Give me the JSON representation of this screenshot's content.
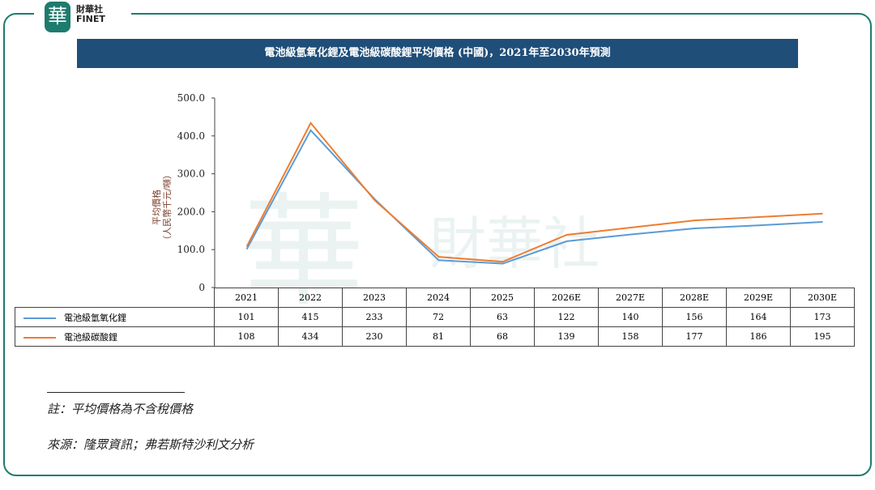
{
  "brand": {
    "logo_char": "華",
    "name_cn": "財華社",
    "name_en": "FINET"
  },
  "title": "電池級氫氧化鋰及電池級碳酸鋰平均價格 (中國)，2021年至2030年預測",
  "chart_data": {
    "type": "line",
    "title": "電池級氫氧化鋰及電池級碳酸鋰平均價格 (中國)，2021年至2030年預測",
    "ylabel": "平均價格（人民幣千元/噸）",
    "ylabel_line1": "平均價格",
    "ylabel_line2": "（人民幣千元/噸）",
    "ylim": [
      0,
      500
    ],
    "yticks": [
      "0",
      "100.0",
      "200.0",
      "300.0",
      "400.0",
      "500.0"
    ],
    "categories": [
      "2021",
      "2022",
      "2023",
      "2024",
      "2025",
      "2026E",
      "2027E",
      "2028E",
      "2029E",
      "2030E"
    ],
    "series": [
      {
        "name": "電池級氫氧化鋰",
        "color": "#5b9bd5",
        "values": [
          101,
          415,
          233,
          72,
          63,
          122,
          140,
          156,
          164,
          173
        ]
      },
      {
        "name": "電池級碳酸鋰",
        "color": "#ed7d31",
        "values": [
          108,
          434,
          230,
          81,
          68,
          139,
          158,
          177,
          186,
          195
        ]
      }
    ]
  },
  "notes": {
    "note": "註：平均價格為不含稅價格",
    "source": "來源：隆眾資訊；弗若斯特沙利文分析"
  }
}
